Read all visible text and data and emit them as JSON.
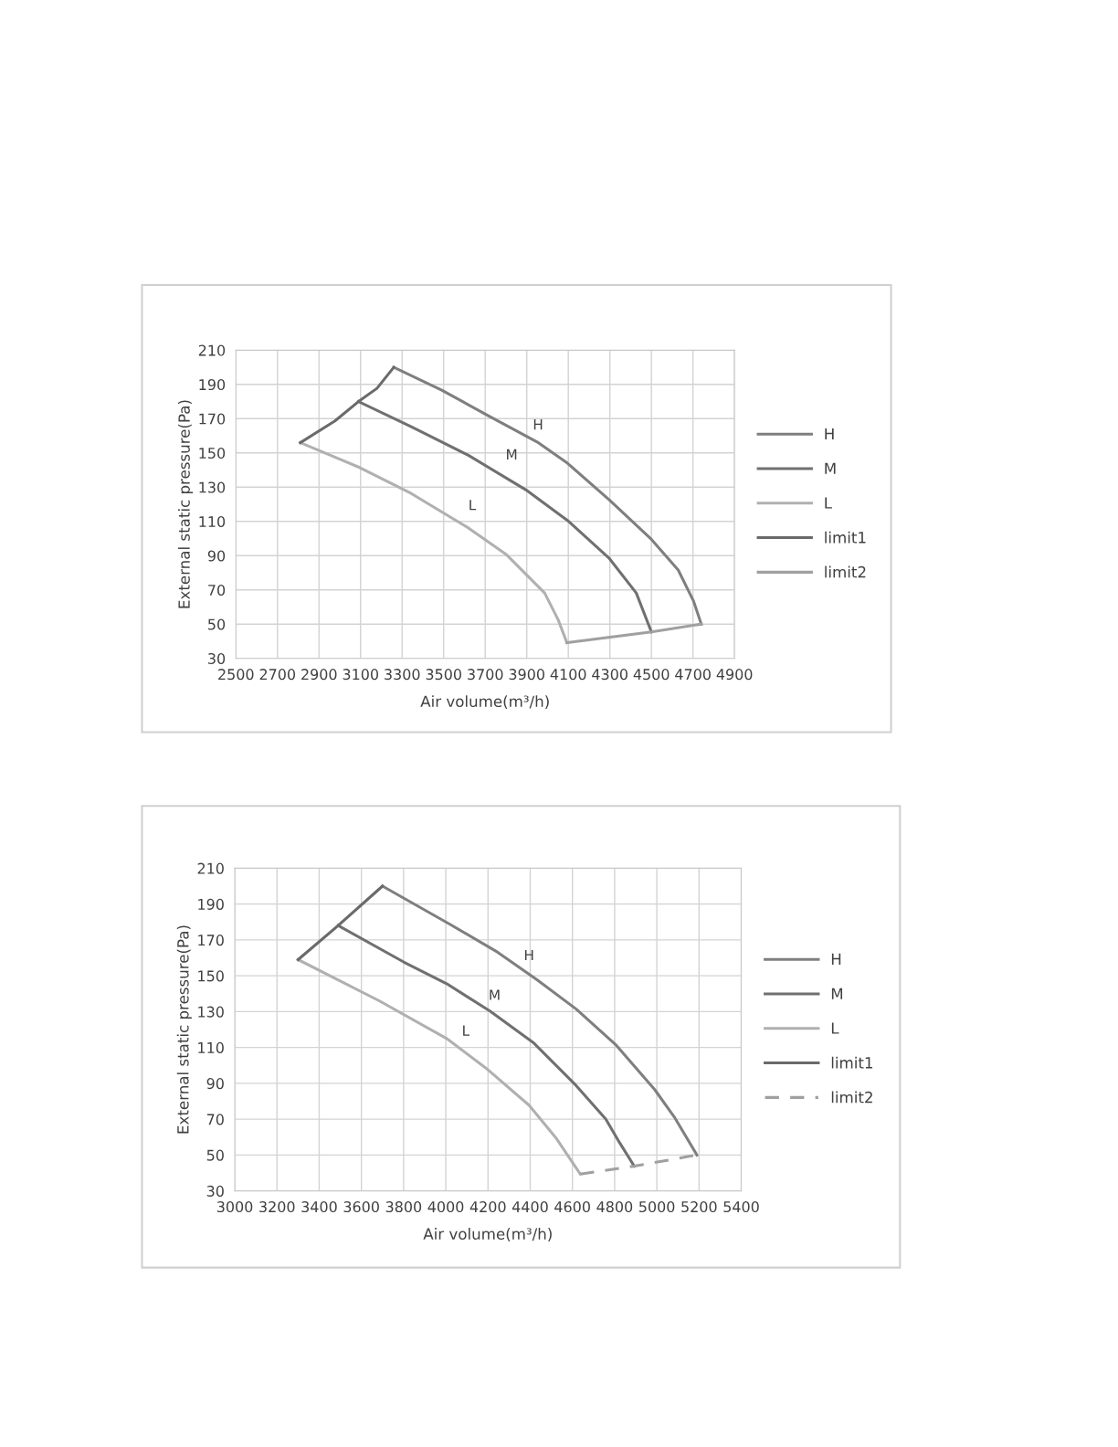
{
  "chart_data": [
    {
      "type": "line",
      "xlabel": "Air volume(m³/h)",
      "ylabel": "External static pressure(Pa)",
      "xlim": [
        2500,
        4900
      ],
      "ylim": [
        30,
        210
      ],
      "xticks": [
        2500,
        2700,
        2900,
        3100,
        3300,
        3500,
        3700,
        3900,
        4100,
        4300,
        4500,
        4700,
        4900
      ],
      "yticks": [
        30,
        50,
        70,
        90,
        110,
        130,
        150,
        170,
        190,
        210
      ],
      "grid": true,
      "legend": "right",
      "marker": "none",
      "series": [
        {
          "name": "H",
          "color": "#7f7f7f",
          "line_style": "solid",
          "x": [
            3260,
            3491,
            3711,
            3950,
            4096,
            4298,
            4500,
            4629,
            4702,
            4740
          ],
          "values": [
            200,
            186.6,
            172,
            156.4,
            144,
            122.5,
            99.5,
            81.6,
            63.7,
            50
          ]
        },
        {
          "name": "M",
          "color": "#707070",
          "line_style": "solid",
          "x": [
            3090,
            3344,
            3619,
            3895,
            4096,
            4298,
            4427,
            4500
          ],
          "values": [
            180,
            165.3,
            148.6,
            128.5,
            110.6,
            88.3,
            68.2,
            45.4
          ]
        },
        {
          "name": "L",
          "color": "#b0b0b0",
          "line_style": "solid",
          "x": [
            2810,
            3087,
            3344,
            3619,
            3803,
            3986,
            4051,
            4093
          ],
          "values": [
            156,
            141.9,
            126.3,
            106.2,
            90.5,
            68.2,
            52.6,
            39.2
          ]
        },
        {
          "name": "limit1",
          "color": "#6a6a6a",
          "line_style": "solid",
          "x": [
            2810,
            2977,
            3090,
            3179,
            3260
          ],
          "values": [
            156,
            168.7,
            180,
            187.7,
            200
          ]
        },
        {
          "name": "limit2",
          "color": "#a0a0a0",
          "line_style": "solid",
          "x": [
            4093,
            4500,
            4740
          ],
          "values": [
            39.2,
            45.4,
            50
          ]
        }
      ],
      "annotations": [
        "H",
        "M",
        "L"
      ]
    },
    {
      "type": "line",
      "xlabel": "Air volume(m³/h)",
      "ylabel": "External static pressure(Pa)",
      "xlim": [
        3000,
        5400
      ],
      "ylim": [
        30,
        210
      ],
      "xticks": [
        3000,
        3200,
        3400,
        3600,
        3800,
        4000,
        4200,
        4400,
        4600,
        4800,
        5000,
        5200,
        5400
      ],
      "yticks": [
        30,
        50,
        70,
        90,
        110,
        130,
        150,
        170,
        190,
        210
      ],
      "grid": true,
      "legend": "right",
      "marker": "none",
      "series": [
        {
          "name": "H",
          "color": "#7f7f7f",
          "line_style": "solid",
          "x": [
            3700,
            4023,
            4246,
            4432,
            4618,
            4804,
            4990,
            5083,
            5190
          ],
          "values": [
            200,
            178.5,
            163.1,
            147.8,
            131.4,
            111.7,
            86.5,
            71.2,
            50
          ]
        },
        {
          "name": "M",
          "color": "#707070",
          "line_style": "solid",
          "x": [
            3490,
            3800,
            4004,
            4209,
            4414,
            4618,
            4758,
            4823,
            4893
          ],
          "values": [
            178,
            157.7,
            145.6,
            130.3,
            112.8,
            88.7,
            70.1,
            57,
            43.8
          ]
        },
        {
          "name": "L",
          "color": "#b0b0b0",
          "line_style": "solid",
          "x": [
            3300,
            3688,
            4004,
            4190,
            4395,
            4525,
            4637
          ],
          "values": [
            159,
            135.8,
            115,
            98.5,
            77.7,
            59.1,
            39.4
          ]
        },
        {
          "name": "limit1",
          "color": "#6a6a6a",
          "line_style": "solid",
          "x": [
            3300,
            3490,
            3700
          ],
          "values": [
            159,
            178,
            200
          ]
        },
        {
          "name": "limit2",
          "color": "#a0a0a0",
          "line_style": "dashed",
          "x": [
            4637,
            4893,
            5190
          ],
          "values": [
            39.4,
            43.8,
            50
          ]
        }
      ],
      "annotations": [
        "H",
        "M",
        "L"
      ]
    }
  ]
}
